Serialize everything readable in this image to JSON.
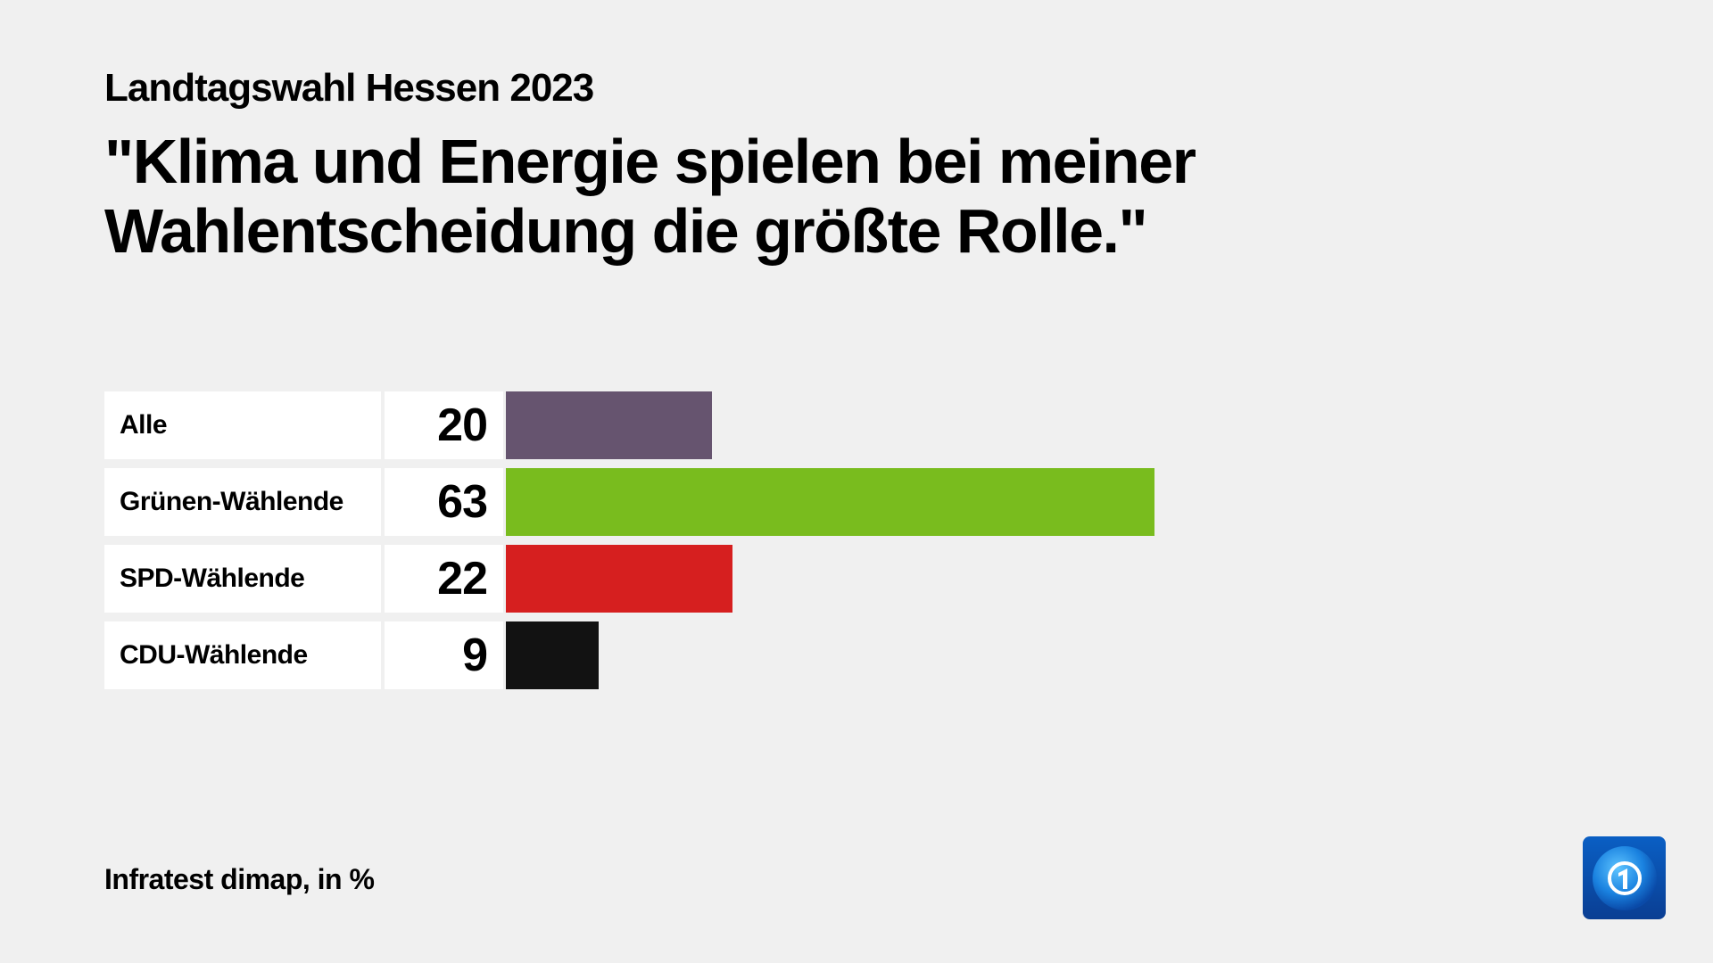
{
  "header": {
    "subtitle": "Landtagswahl Hessen 2023",
    "headline": "\"Klima und Energie spielen bei meiner Wahlentscheidung die größte Rolle.\""
  },
  "rows": [
    {
      "label": "Alle",
      "value": "20",
      "color": "#66546f"
    },
    {
      "label": "Grünen-Wählende",
      "value": "63",
      "color": "#79bc1e"
    },
    {
      "label": "SPD-Wählende",
      "value": "22",
      "color": "#d61f1f"
    },
    {
      "label": "CDU-Wählende",
      "value": "9",
      "color": "#121212"
    }
  ],
  "footer": {
    "source": "Infratest dimap, in %",
    "logo_icon": "tagesschau-logo-icon"
  },
  "chart_data": {
    "type": "bar",
    "orientation": "horizontal",
    "title": "\"Klima und Energie spielen bei meiner Wahlentscheidung die größte Rolle.\"",
    "subtitle": "Landtagswahl Hessen 2023",
    "categories": [
      "Alle",
      "Grünen-Wählende",
      "SPD-Wählende",
      "CDU-Wählende"
    ],
    "values": [
      20,
      63,
      22,
      9
    ],
    "colors": [
      "#66546f",
      "#79bc1e",
      "#d61f1f",
      "#121212"
    ],
    "xlabel": "",
    "ylabel": "",
    "unit": "%",
    "source": "Infratest dimap, in %",
    "grid": false,
    "legend": "none",
    "data_labels": true
  }
}
